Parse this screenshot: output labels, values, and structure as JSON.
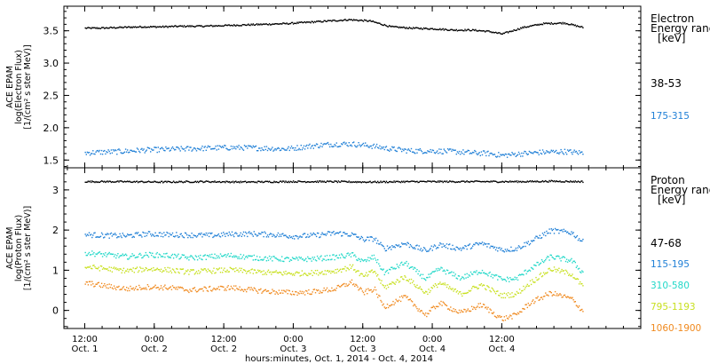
{
  "chart_data": [
    {
      "type": "scatter",
      "panel": "electron",
      "ylabel_lines": [
        "ACE EPAM",
        "log(Electron Flux)",
        "[1/(cm² s ster MeV)]"
      ],
      "ylim": [
        1.38,
        3.88
      ],
      "yticks": [
        1.5,
        2.0,
        2.5,
        3.0,
        3.5
      ],
      "ytick_labels": [
        "1.5",
        "2.0",
        "2.5",
        "3.0",
        "3.5"
      ],
      "legend_title": [
        "Electron",
        "Energy range",
        "[keV]"
      ],
      "series": [
        {
          "name": "38-53",
          "color": "#000000",
          "x": [
            0.0,
            0.1,
            0.25,
            0.4,
            0.55,
            0.7,
            0.85,
            1.0,
            1.15,
            1.3,
            1.45,
            1.6,
            1.75,
            1.9,
            2.05,
            2.2,
            2.35,
            2.5,
            2.65,
            2.78,
            2.9,
            3.0,
            3.15,
            3.3,
            3.45,
            3.58
          ],
          "y": [
            3.55,
            3.55,
            3.56,
            3.57,
            3.57,
            3.58,
            3.58,
            3.59,
            3.6,
            3.61,
            3.62,
            3.64,
            3.66,
            3.68,
            3.66,
            3.57,
            3.55,
            3.54,
            3.52,
            3.52,
            3.5,
            3.46,
            3.56,
            3.62,
            3.63,
            3.56
          ]
        },
        {
          "name": "175-315",
          "color": "#1f7fd6",
          "x": [
            0.0,
            0.1,
            0.25,
            0.4,
            0.55,
            0.7,
            0.85,
            1.0,
            1.15,
            1.3,
            1.45,
            1.6,
            1.75,
            1.9,
            2.05,
            2.2,
            2.35,
            2.5,
            2.65,
            2.78,
            2.9,
            3.0,
            3.15,
            3.3,
            3.45,
            3.58
          ],
          "y": [
            1.62,
            1.63,
            1.64,
            1.66,
            1.67,
            1.68,
            1.69,
            1.7,
            1.7,
            1.69,
            1.68,
            1.72,
            1.75,
            1.76,
            1.73,
            1.68,
            1.65,
            1.65,
            1.64,
            1.62,
            1.61,
            1.58,
            1.61,
            1.63,
            1.64,
            1.62
          ]
        }
      ]
    },
    {
      "type": "scatter",
      "panel": "proton",
      "ylabel_lines": [
        "ACE EPAM",
        "log(Proton Flux)",
        "[1/(cm² s ster MeV)]"
      ],
      "ylim": [
        -0.45,
        3.55
      ],
      "yticks": [
        0,
        1,
        2,
        3
      ],
      "ytick_labels": [
        "0",
        "1",
        "2",
        "3"
      ],
      "legend_title": [
        "Proton",
        "Energy range",
        "[keV]"
      ],
      "series": [
        {
          "name": "47-68",
          "color": "#000000",
          "x": [
            0.0,
            0.25,
            0.55,
            0.85,
            1.15,
            1.45,
            1.75,
            2.05,
            2.35,
            2.65,
            2.9,
            3.15,
            3.35,
            3.58
          ],
          "y": [
            3.22,
            3.22,
            3.21,
            3.22,
            3.21,
            3.22,
            3.22,
            3.21,
            3.22,
            3.22,
            3.22,
            3.22,
            3.23,
            3.22
          ]
        },
        {
          "name": "115-195",
          "color": "#1f7fd6",
          "x": [
            0.0,
            0.15,
            0.3,
            0.45,
            0.6,
            0.75,
            0.9,
            1.05,
            1.2,
            1.35,
            1.5,
            1.65,
            1.8,
            1.92,
            2.0,
            2.08,
            2.15,
            2.3,
            2.45,
            2.55,
            2.7,
            2.85,
            3.0,
            3.1,
            3.2,
            3.35,
            3.5,
            3.58
          ],
          "y": [
            1.9,
            1.88,
            1.87,
            1.92,
            1.9,
            1.89,
            1.88,
            1.91,
            1.92,
            1.9,
            1.86,
            1.88,
            1.94,
            1.9,
            1.78,
            1.8,
            1.55,
            1.68,
            1.5,
            1.65,
            1.55,
            1.68,
            1.52,
            1.55,
            1.72,
            2.0,
            1.95,
            1.72
          ]
        },
        {
          "name": "310-580",
          "color": "#22d8c8",
          "x": [
            0.0,
            0.15,
            0.3,
            0.45,
            0.6,
            0.75,
            0.9,
            1.05,
            1.2,
            1.35,
            1.5,
            1.65,
            1.8,
            1.92,
            2.0,
            2.08,
            2.15,
            2.3,
            2.45,
            2.55,
            2.7,
            2.85,
            3.0,
            3.1,
            3.2,
            3.35,
            3.5,
            3.58
          ],
          "y": [
            1.45,
            1.4,
            1.35,
            1.4,
            1.38,
            1.32,
            1.35,
            1.38,
            1.33,
            1.3,
            1.28,
            1.3,
            1.34,
            1.4,
            1.22,
            1.35,
            0.95,
            1.2,
            0.8,
            1.05,
            0.82,
            1.0,
            0.78,
            0.8,
            1.05,
            1.35,
            1.25,
            0.95
          ]
        },
        {
          "name": "795-1193",
          "color": "#c8e020",
          "x": [
            0.0,
            0.15,
            0.3,
            0.45,
            0.6,
            0.75,
            0.9,
            1.05,
            1.2,
            1.35,
            1.5,
            1.65,
            1.8,
            1.92,
            2.0,
            2.08,
            2.15,
            2.3,
            2.45,
            2.55,
            2.7,
            2.85,
            3.0,
            3.1,
            3.2,
            3.35,
            3.5,
            3.58
          ],
          "y": [
            1.1,
            1.05,
            1.0,
            1.05,
            1.02,
            0.97,
            1.0,
            1.02,
            0.98,
            0.95,
            0.93,
            0.95,
            1.0,
            1.1,
            0.85,
            1.0,
            0.58,
            0.85,
            0.45,
            0.7,
            0.42,
            0.65,
            0.38,
            0.42,
            0.7,
            1.05,
            0.92,
            0.6
          ]
        },
        {
          "name": "1060-1900",
          "color": "#f08a20",
          "x": [
            0.0,
            0.15,
            0.3,
            0.45,
            0.6,
            0.75,
            0.9,
            1.05,
            1.2,
            1.35,
            1.5,
            1.65,
            1.8,
            1.92,
            2.0,
            2.08,
            2.15,
            2.3,
            2.45,
            2.55,
            2.7,
            2.85,
            3.0,
            3.1,
            3.2,
            3.35,
            3.5,
            3.58
          ],
          "y": [
            0.7,
            0.62,
            0.55,
            0.6,
            0.58,
            0.52,
            0.55,
            0.58,
            0.52,
            0.48,
            0.45,
            0.48,
            0.55,
            0.72,
            0.45,
            0.55,
            0.1,
            0.35,
            -0.1,
            0.2,
            -0.05,
            0.15,
            -0.2,
            -0.1,
            0.2,
            0.45,
            0.3,
            0.0
          ]
        }
      ]
    }
  ],
  "x_axis": {
    "xlim": [
      -0.15,
      4.0
    ],
    "ticks": [
      {
        "value": 0.0,
        "time": "12:00",
        "date": "Oct. 1"
      },
      {
        "value": 0.5,
        "time": "0:00",
        "date": "Oct. 2"
      },
      {
        "value": 1.0,
        "time": "12:00",
        "date": "Oct. 2"
      },
      {
        "value": 1.5,
        "time": "0:00",
        "date": "Oct. 3"
      },
      {
        "value": 2.0,
        "time": "12:00",
        "date": "Oct. 3"
      },
      {
        "value": 2.5,
        "time": "0:00",
        "date": "Oct. 4"
      },
      {
        "value": 3.0,
        "time": "12:00",
        "date": "Oct. 4"
      }
    ],
    "label": "hours:minutes, Oct.  1, 2014 - Oct.  4, 2014"
  }
}
